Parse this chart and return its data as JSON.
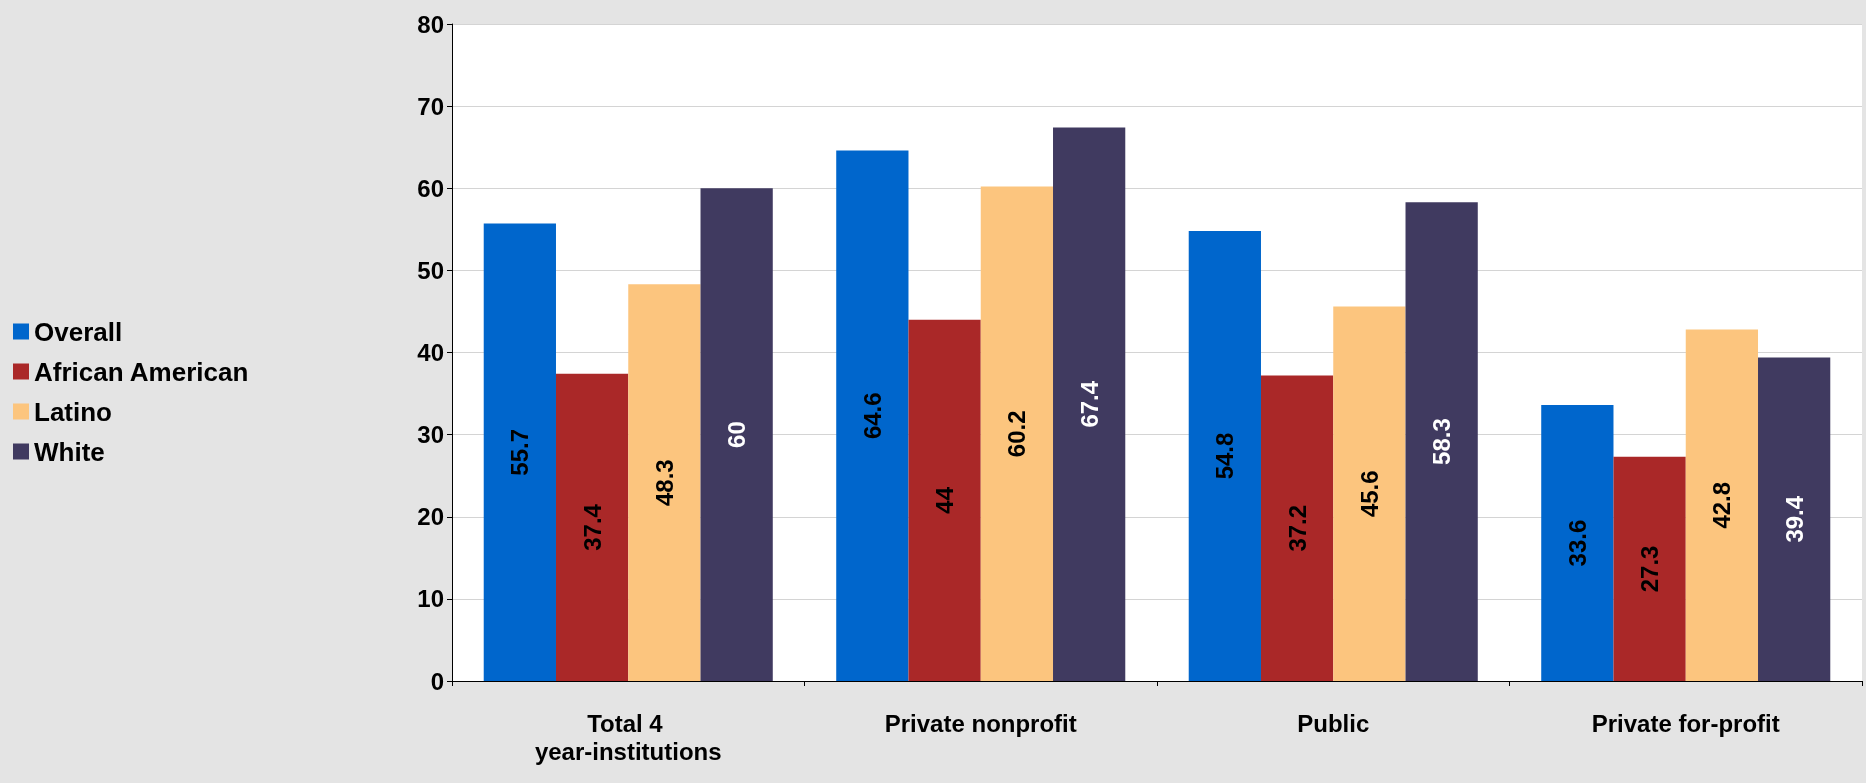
{
  "chart_data": {
    "type": "bar",
    "categories": [
      "Total 4 year-institutions",
      "Private nonprofit",
      "Public",
      "Private for-profit"
    ],
    "series": [
      {
        "name": "Overall",
        "color": "#0066cc",
        "values": [
          55.7,
          64.6,
          54.8,
          33.6
        ]
      },
      {
        "name": "African American",
        "color": "#aa2828",
        "values": [
          37.4,
          44,
          37.2,
          27.3
        ]
      },
      {
        "name": "Latino",
        "color": "#fcc57e",
        "values": [
          48.3,
          60.2,
          45.6,
          42.8
        ]
      },
      {
        "name": "White",
        "color": "#403a60",
        "values": [
          60,
          67.4,
          58.3,
          39.4
        ]
      }
    ],
    "ylim": [
      0,
      80
    ],
    "yticks": [
      0,
      10,
      20,
      30,
      40,
      50,
      60,
      70,
      80
    ],
    "grid": "y",
    "legend": "left",
    "data_labels": true
  }
}
